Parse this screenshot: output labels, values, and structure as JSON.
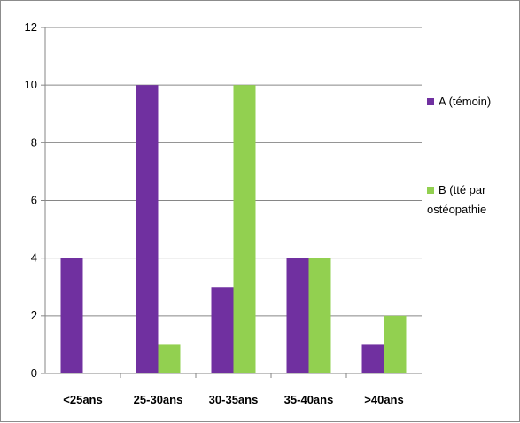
{
  "chart_data": {
    "type": "bar",
    "categories": [
      "<25ans",
      "25-30ans",
      "30-35ans",
      "35-40ans",
      ">40ans"
    ],
    "series": [
      {
        "name": "A (témoin)",
        "values": [
          4,
          10,
          3,
          4,
          1
        ],
        "color": "#7030a0"
      },
      {
        "name": "B (tté par ostéopathie",
        "values": [
          0,
          1,
          10,
          4,
          2
        ],
        "color": "#92d050"
      }
    ],
    "legend_lines": [
      [
        "A (témoin)"
      ],
      [
        "B (tté par",
        "ostéopathie"
      ]
    ],
    "ylim": [
      0,
      12
    ],
    "yticks": [
      0,
      2,
      4,
      6,
      8,
      10,
      12
    ],
    "grid": true,
    "legend_position": "right"
  }
}
